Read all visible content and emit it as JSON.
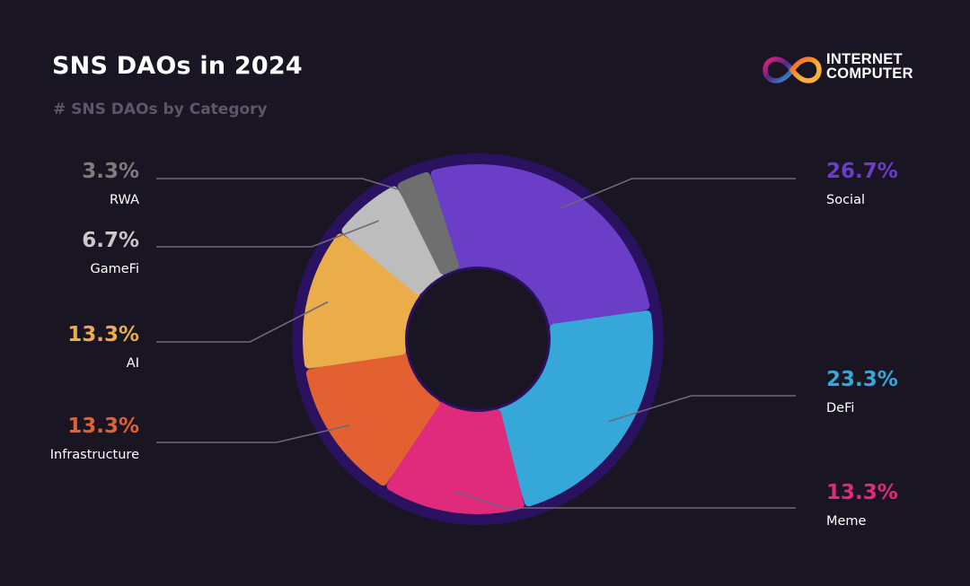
{
  "header": {
    "title": "SNS DAOs in 2024",
    "subtitle": "# SNS DAOs by Category"
  },
  "logo": {
    "line1": "INTERNET",
    "line2": "COMPUTER",
    "icon": "infinity-icon"
  },
  "colors": {
    "background": "#1a1523",
    "ring": "#2a1260",
    "hole": "#1a1523",
    "leader": "#6e6878"
  },
  "chart_data": {
    "type": "pie",
    "title": "SNS DAOs in 2024",
    "subtitle": "# SNS DAOs by Category",
    "slices": [
      {
        "label": "Social",
        "value": 26.7,
        "display": "26.7%",
        "color": "#6a3ec7"
      },
      {
        "label": "DeFi",
        "value": 23.3,
        "display": "23.3%",
        "color": "#35a7d8"
      },
      {
        "label": "Meme",
        "value": 13.3,
        "display": "13.3%",
        "color": "#e02b7d"
      },
      {
        "label": "Infrastructure",
        "value": 13.3,
        "display": "13.3%",
        "color": "#e26031"
      },
      {
        "label": "AI",
        "value": 13.3,
        "display": "13.3%",
        "color": "#ebad49"
      },
      {
        "label": "GameFi",
        "value": 6.7,
        "display": "6.7%",
        "color": "#bdbdbd"
      },
      {
        "label": "RWA",
        "value": 3.3,
        "display": "3.3%",
        "color": "#6f6f6f"
      }
    ]
  }
}
